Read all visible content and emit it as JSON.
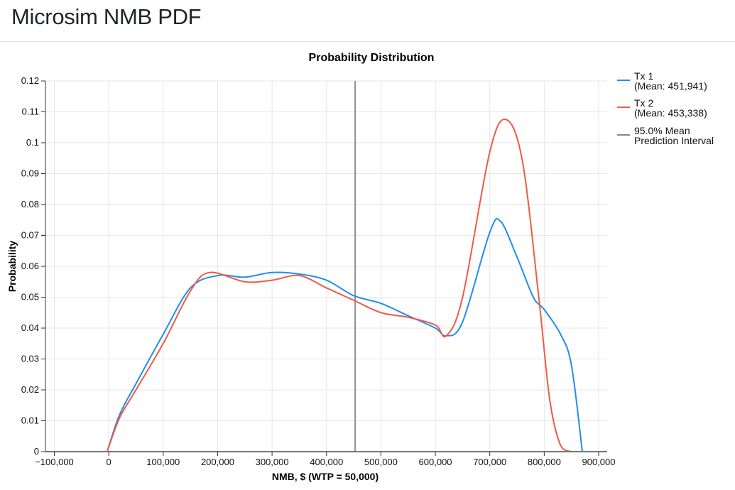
{
  "header": {
    "title": "Microsim NMB PDF"
  },
  "chart_data": {
    "type": "line",
    "title": "Probability Distribution",
    "xlabel": "NMB, $ (WTP = 50,000)",
    "ylabel": "Probability",
    "xlim": [
      -100000,
      900000
    ],
    "ylim": [
      0,
      0.12
    ],
    "grid": true,
    "legend_position": "right",
    "x_ticks": [
      "−100,000",
      "0",
      "100,000",
      "200,000",
      "300,000",
      "400,000",
      "500,000",
      "600,000",
      "700,000",
      "800,000",
      "900,000"
    ],
    "y_ticks": [
      "0",
      "0.01",
      "0.02",
      "0.03",
      "0.04",
      "0.05",
      "0.06",
      "0.07",
      "0.08",
      "0.09",
      "0.1",
      "0.11",
      "0.12"
    ],
    "series": [
      {
        "name": "Tx 1",
        "legend_label_line1": "Tx 1",
        "legend_label_line2": "(Mean: 451,941)",
        "mean": 451941,
        "color": "#1f8ef1",
        "x": [
          -3000,
          20000,
          50000,
          100000,
          150000,
          200000,
          250000,
          300000,
          350000,
          400000,
          450000,
          500000,
          550000,
          600000,
          620000,
          650000,
          700000,
          720000,
          750000,
          780000,
          800000,
          830000,
          850000,
          870000
        ],
        "values": [
          0,
          0.012,
          0.022,
          0.038,
          0.053,
          0.057,
          0.0565,
          0.058,
          0.0575,
          0.0555,
          0.0505,
          0.048,
          0.044,
          0.04,
          0.0375,
          0.042,
          0.071,
          0.0745,
          0.063,
          0.05,
          0.046,
          0.038,
          0.028,
          0
        ]
      },
      {
        "name": "Tx 2",
        "legend_label_line1": "Tx 2",
        "legend_label_line2": "(Mean: 453,338)",
        "mean": 453338,
        "color": "#f05a45",
        "x": [
          -3000,
          20000,
          50000,
          100000,
          150000,
          185000,
          250000,
          300000,
          350000,
          400000,
          450000,
          500000,
          550000,
          600000,
          620000,
          650000,
          700000,
          730000,
          760000,
          790000,
          810000,
          830000,
          850000,
          870000
        ],
        "values": [
          0,
          0.011,
          0.02,
          0.035,
          0.052,
          0.058,
          0.055,
          0.0555,
          0.057,
          0.053,
          0.049,
          0.045,
          0.0435,
          0.041,
          0.0375,
          0.05,
          0.097,
          0.1075,
          0.094,
          0.05,
          0.017,
          0.002,
          0,
          0
        ]
      },
      {
        "name": "95.0% Mean Prediction Interval",
        "legend_label_line1": "95.0% Mean",
        "legend_label_line2": "Prediction Interval",
        "color": "#888888",
        "x": [
          451941,
          453338
        ],
        "values": [
          0.12,
          0.12
        ]
      }
    ]
  }
}
